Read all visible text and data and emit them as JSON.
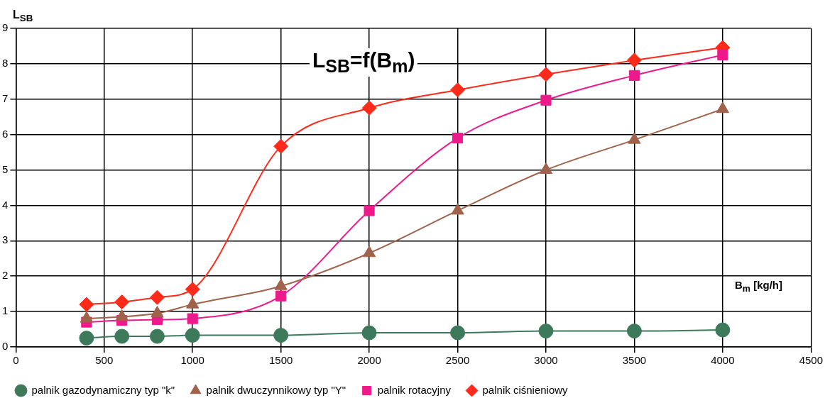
{
  "chart_data": {
    "type": "line",
    "title": "L$_{SB}$=f(B$_{m}$)",
    "ylabel": "L$_{SB}$",
    "xlabel": "B$_{m}$ [kg/h]",
    "x": [
      400,
      600,
      800,
      1000,
      1500,
      2000,
      2500,
      3000,
      3500,
      4000
    ],
    "series": [
      {
        "name": "palnik ciśnieniowy",
        "color": "#ff2a1a",
        "marker": "diamond",
        "values": [
          1.2,
          1.27,
          1.4,
          1.63,
          5.67,
          6.75,
          7.26,
          7.7,
          8.1,
          8.46
        ]
      },
      {
        "name": "palnik rotacyjny",
        "color": "#ee1a8c",
        "marker": "square",
        "values": [
          0.7,
          0.75,
          0.77,
          0.8,
          1.44,
          3.85,
          5.9,
          6.97,
          7.67,
          8.25
        ]
      },
      {
        "name": "palnik dwuczynnikowy typ \"Y\"",
        "color": "#a0624a",
        "marker": "triangle",
        "values": [
          0.8,
          0.85,
          0.95,
          1.2,
          1.72,
          2.65,
          3.85,
          5.0,
          5.85,
          6.72
        ]
      },
      {
        "name": "palnik gazodynamiczny typ \"k\"",
        "color": "#3d7a5c",
        "marker": "circle",
        "values": [
          0.25,
          0.3,
          0.3,
          0.33,
          0.33,
          0.4,
          0.4,
          0.45,
          0.45,
          0.48
        ]
      }
    ],
    "xlim": [
      0,
      4500
    ],
    "xticks": [
      0,
      500,
      1000,
      1500,
      2000,
      2500,
      3000,
      3500,
      4000,
      4500
    ],
    "ylim": [
      0,
      9
    ],
    "yticks": [
      0,
      1,
      2,
      3,
      4,
      5,
      6,
      7,
      8,
      9
    ],
    "grid": true,
    "legend": "bottom"
  }
}
